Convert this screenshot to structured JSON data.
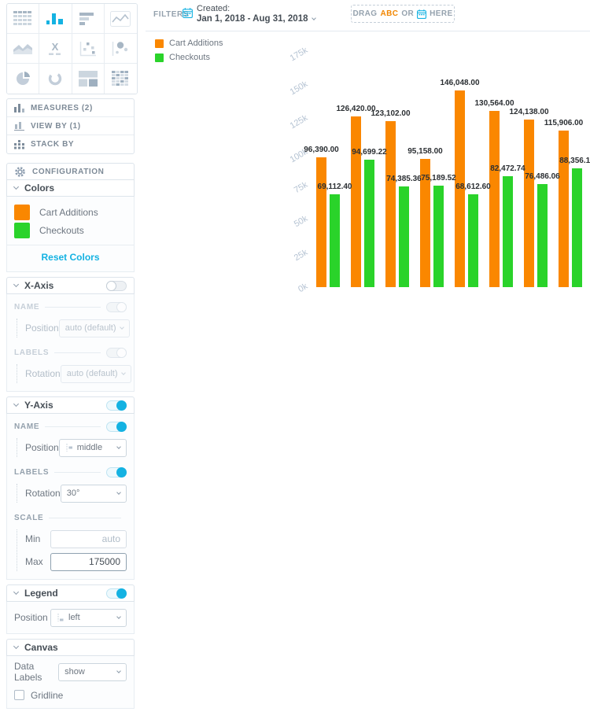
{
  "app": {
    "accent_color": "#14b2e2",
    "border_color": "#dde4eb"
  },
  "viz_picker": {
    "selected": "column",
    "items": [
      "table",
      "column",
      "bar",
      "line",
      "area",
      "headline",
      "scatter",
      "bubble",
      "pie",
      "donut",
      "treemap",
      "heatmap"
    ]
  },
  "filters_bar": {
    "filters_label": "FILTERS",
    "created_label": "Created:",
    "created_value": "Jan 1, 2018 - Aug 31, 2018",
    "dropzone": {
      "drag": "DRAG",
      "abc": "ABC",
      "or": "OR",
      "here": "HERE"
    }
  },
  "buckets": {
    "measures": "MEASURES (2)",
    "view_by": "VIEW BY (1)",
    "stack_by": "STACK BY"
  },
  "config": {
    "title": "CONFIGURATION",
    "colors": {
      "title": "Colors",
      "items": [
        {
          "label": "Cart Additions",
          "color": "#fa8700"
        },
        {
          "label": "Checkouts",
          "color": "#2ad32a"
        }
      ],
      "reset_label": "Reset Colors"
    },
    "x_axis": {
      "title": "X-Axis",
      "enabled": false,
      "name_label": "NAME",
      "name_enabled": true,
      "position_label": "Position",
      "position_value": "auto (default)",
      "labels_label": "LABELS",
      "labels_enabled": true,
      "rotation_label": "Rotation",
      "rotation_value": "auto (default)"
    },
    "y_axis": {
      "title": "Y-Axis",
      "enabled": true,
      "name_label": "NAME",
      "name_enabled": true,
      "position_label": "Position",
      "position_value": "middle",
      "labels_label": "LABELS",
      "labels_enabled": true,
      "rotation_label": "Rotation",
      "rotation_value": "30°",
      "scale_label": "SCALE",
      "min_label": "Min",
      "min_placeholder": "auto",
      "max_label": "Max",
      "max_value": "175000"
    },
    "legend": {
      "title": "Legend",
      "enabled": true,
      "position_label": "Position",
      "position_value": "left"
    },
    "canvas": {
      "title": "Canvas",
      "data_labels_label": "Data Labels",
      "data_labels_value": "show",
      "gridline_label": "Gridline",
      "gridline_checked": false
    }
  },
  "chart_data": {
    "type": "bar",
    "orientation": "vertical-grouped",
    "series": [
      {
        "name": "Cart Additions",
        "color": "#fa8700",
        "values": [
          96390,
          126420,
          123102,
          95158,
          146048,
          130564,
          124138,
          115906
        ],
        "labels": [
          "96,390.00",
          "126,420.00",
          "123,102.00",
          "95,158.00",
          "146,048.00",
          "130,564.00",
          "124,138.00",
          "115,906.00"
        ]
      },
      {
        "name": "Checkouts",
        "color": "#2ad32a",
        "values": [
          69112.4,
          94699.22,
          74385.36,
          75189.52,
          68612.6,
          82472.74,
          76486.06,
          88356.1
        ],
        "labels": [
          "69,112.40",
          "94,699.22",
          "74,385.36",
          "75,189.52",
          "68,612.60",
          "82,472.74",
          "76,486.06",
          "88,356.10"
        ]
      }
    ],
    "y_ticks": [
      "0k",
      "25k",
      "50k",
      "75k",
      "100k",
      "125k",
      "150k",
      "175k"
    ],
    "ylim": [
      0,
      175000
    ],
    "y_label_rotation": 30,
    "x_axis_visible": false,
    "gridline": false,
    "data_labels": "show",
    "legend_position": "left"
  }
}
